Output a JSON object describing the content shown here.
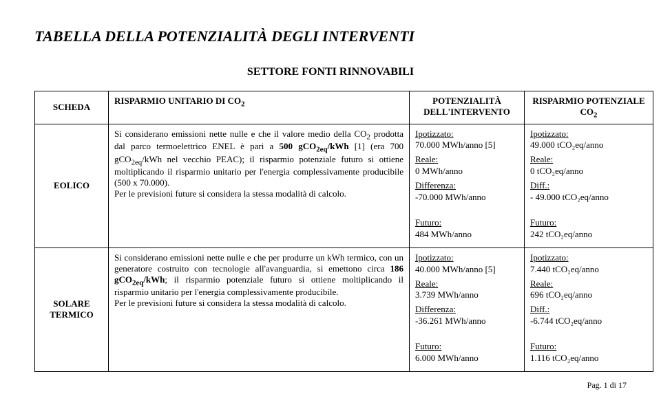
{
  "title": "TABELLA DELLA POTENZIALITÀ DEGLI INTERVENTI",
  "subtitle": "SETTORE FONTI RINNOVABILI",
  "headers": {
    "scheda": "SCHEDA",
    "risparmio_unitario": "RISPARMIO UNITARIO DI CO",
    "risparmio_unitario_sub": "2",
    "potenzialita": "POTENZIALITÀ DELL'INTERVENTO",
    "risparmio_potenziale": "RISPARMIO POTENZIALE CO",
    "risparmio_potenziale_sub": "2"
  },
  "labels": {
    "ipotizzato": "Ipotizzato:",
    "reale": "Reale:",
    "differenza": "Differenza:",
    "diff": "Diff.:",
    "futuro": "Futuro:"
  },
  "rows": [
    {
      "scheda": "EOLICO",
      "desc_parts": {
        "p1": "Si considerano emissioni nette nulle e che il valore medio della CO",
        "p1sub": "2",
        "p2": " prodotta dal parco termoelettrico ENEL è pari a ",
        "bold1": "500 gCO",
        "bold1sub": "2eq",
        "bold1after": "/kWh",
        "p3": " [1] (era 700 gCO",
        "p3sub": "2eq",
        "p4": "/kWh nel vecchio PEAC); il risparmio potenziale futuro si ottiene moltiplicando il risparmio unitario per l'energia complessivamente producibile (500 x 70.000).",
        "p5": "Per le previsioni future si considera la stessa modalità di calcolo."
      },
      "pot": {
        "ipotizzato": "70.000 MWh/anno [5]",
        "reale": "0 MWh/anno",
        "differenza": "-70.000 MWh/anno",
        "futuro": "484 MWh/anno"
      },
      "risp": {
        "ipotizzato": "49.000 tCO₂eq/anno",
        "reale": "0 tCO₂eq/anno",
        "diff": "- 49.000 tCO₂eq/anno",
        "futuro": "242 tCO₂eq/anno"
      }
    },
    {
      "scheda": "SOLARE TERMICO",
      "desc_parts": {
        "p1": "Si considerano emissioni nette nulle e che per produrre un kWh termico, con un generatore costruito con tecnologie all'avanguardia, si emettono circa ",
        "bold1": "186 gCO",
        "bold1sub": "2eq",
        "bold1after": "/kWh",
        "p2": "; il risparmio potenziale futuro si ottiene moltiplicando il risparmio unitario per l'energia complessivamente producibile.",
        "p3": "Per le previsioni future si considera la stessa modalità di calcolo."
      },
      "pot": {
        "ipotizzato": "40.000 MWh/anno [5]",
        "reale": "3.739 MWh/anno",
        "differenza": "-36.261 MWh/anno",
        "futuro": "6.000 MWh/anno"
      },
      "risp": {
        "ipotizzato": "7.440 tCO₂eq/anno",
        "reale": "696 tCO₂eq/anno",
        "diff": "-6.744 tCO₂eq/anno",
        "futuro": "1.116 tCO₂eq/anno"
      }
    }
  ],
  "footer": "Pag. 1 di 17"
}
